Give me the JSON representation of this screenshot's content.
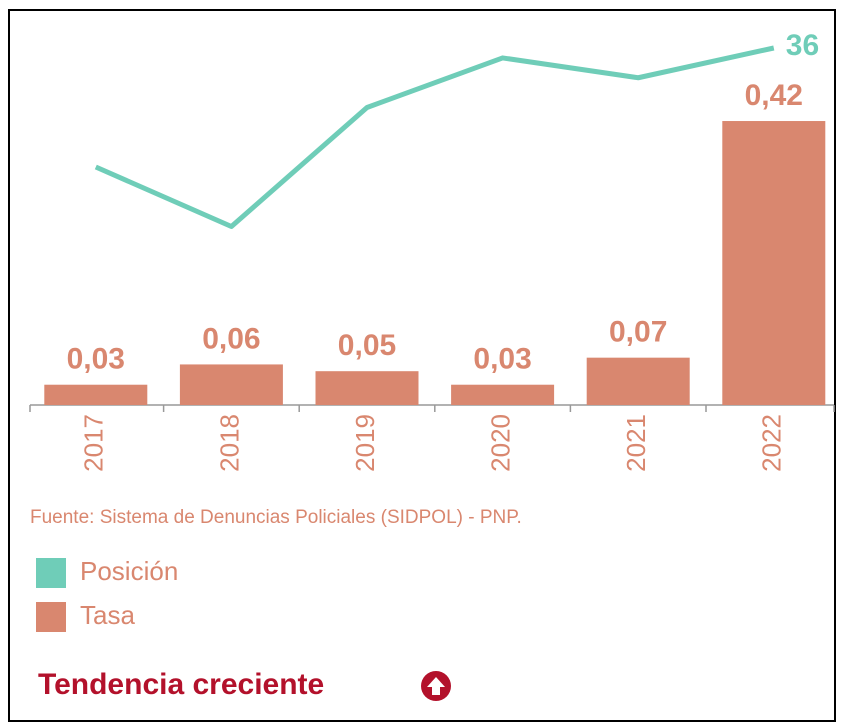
{
  "chart_data": {
    "type": "bar",
    "categories": [
      "2017",
      "2018",
      "2019",
      "2020",
      "2021",
      "2022"
    ],
    "series": [
      {
        "name": "Posición",
        "type": "line",
        "axis": "y2",
        "color": "#6fcdb8",
        "values": [
          24,
          18,
          30,
          35,
          33,
          36
        ],
        "end_label": true
      },
      {
        "name": "Tasa",
        "type": "bar",
        "color": "#d9876f",
        "values": [
          0.03,
          0.06,
          0.05,
          0.03,
          0.07,
          0.42
        ],
        "value_labels": [
          "0,03",
          "0,06",
          "0,05",
          "0,03",
          "0,07",
          "0,42"
        ]
      }
    ],
    "ylim": [
      0,
      0.528
    ],
    "y2lim": [
      0,
      36
    ],
    "source": "Fuente: Sistema de Denuncias Policiales (SIDPOL) - PNP.",
    "trend": "Tendencia creciente"
  }
}
